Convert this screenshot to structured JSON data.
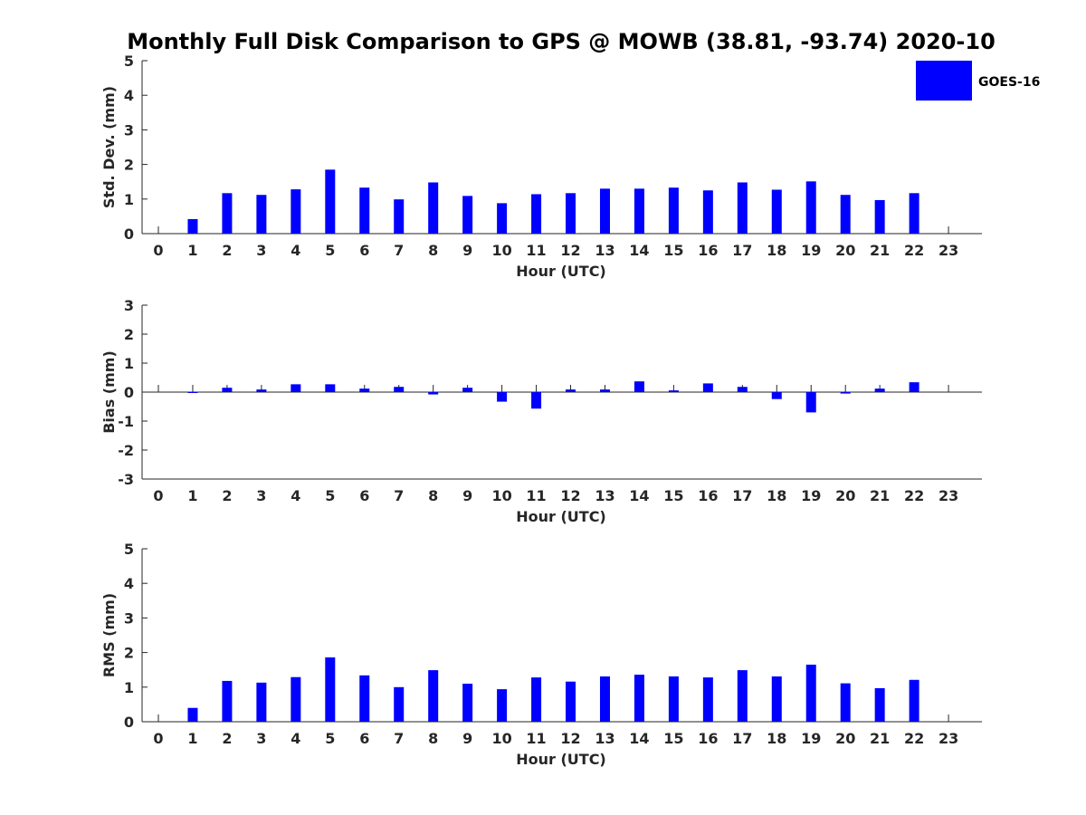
{
  "chart_data": {
    "title": "Monthly Full Disk Comparison to GPS @ MOWB (38.81, -93.74) 2020-10",
    "legend": {
      "label": "GOES-16",
      "color": "#0000ff",
      "placement": "top-right"
    },
    "panels": [
      {
        "type": "bar",
        "name": "std-dev",
        "ylabel": "Std. Dev. (mm)",
        "xlabel": "Hour (UTC)",
        "ylim": [
          0,
          5
        ],
        "yticks": [
          "0",
          "1",
          "2",
          "3",
          "4",
          "5"
        ],
        "categories": [
          "0",
          "1",
          "2",
          "3",
          "4",
          "5",
          "6",
          "7",
          "8",
          "9",
          "10",
          "11",
          "12",
          "13",
          "14",
          "15",
          "16",
          "17",
          "18",
          "19",
          "20",
          "21",
          "22",
          "23"
        ],
        "values": [
          null,
          0.42,
          1.17,
          1.12,
          1.28,
          1.85,
          1.33,
          0.99,
          1.48,
          1.09,
          0.88,
          1.14,
          1.17,
          1.3,
          1.3,
          1.33,
          1.25,
          1.48,
          1.27,
          1.51,
          1.12,
          0.97,
          1.17,
          null
        ]
      },
      {
        "type": "bar",
        "name": "bias",
        "ylabel": "Bias (mm)",
        "xlabel": "Hour (UTC)",
        "ylim": [
          -3,
          3
        ],
        "yticks": [
          "-3",
          "-2",
          "-1",
          "0",
          "1",
          "2",
          "3"
        ],
        "categories": [
          "0",
          "1",
          "2",
          "3",
          "4",
          "5",
          "6",
          "7",
          "8",
          "9",
          "10",
          "11",
          "12",
          "13",
          "14",
          "15",
          "16",
          "17",
          "18",
          "19",
          "20",
          "21",
          "22",
          "23"
        ],
        "values": [
          null,
          -0.02,
          0.15,
          0.09,
          0.27,
          0.27,
          0.12,
          0.18,
          -0.08,
          0.15,
          -0.33,
          -0.57,
          0.09,
          0.09,
          0.37,
          0.06,
          0.3,
          0.18,
          -0.24,
          -0.7,
          -0.05,
          0.12,
          0.34,
          null
        ]
      },
      {
        "type": "bar",
        "name": "rms",
        "ylabel": "RMS (mm)",
        "xlabel": "Hour (UTC)",
        "ylim": [
          0,
          5
        ],
        "yticks": [
          "0",
          "1",
          "2",
          "3",
          "4",
          "5"
        ],
        "categories": [
          "0",
          "1",
          "2",
          "3",
          "4",
          "5",
          "6",
          "7",
          "8",
          "9",
          "10",
          "11",
          "12",
          "13",
          "14",
          "15",
          "16",
          "17",
          "18",
          "19",
          "20",
          "21",
          "22",
          "23"
        ],
        "values": [
          null,
          0.4,
          1.18,
          1.13,
          1.29,
          1.86,
          1.34,
          1.0,
          1.49,
          1.1,
          0.94,
          1.28,
          1.16,
          1.31,
          1.36,
          1.31,
          1.28,
          1.49,
          1.31,
          1.65,
          1.11,
          0.97,
          1.21,
          null
        ]
      }
    ]
  }
}
